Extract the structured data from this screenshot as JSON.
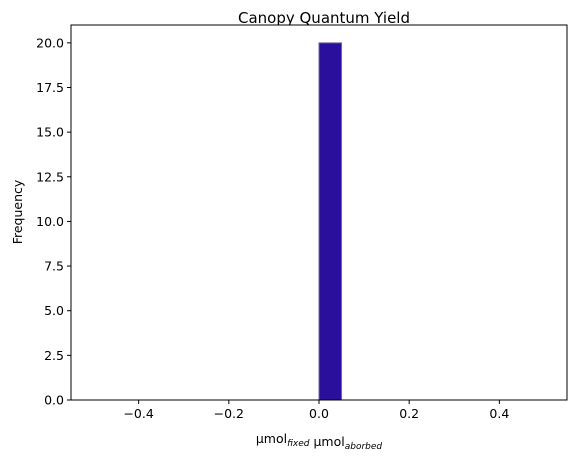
{
  "chart_data": {
    "type": "bar",
    "title": "Canopy Quantum Yield",
    "xlabel": {
      "parts": [
        {
          "text": "μmol",
          "sub": "fixed"
        },
        {
          "text": " μmol",
          "sub": "aborbed"
        }
      ]
    },
    "ylabel": "Frequency",
    "xlim": [
      -0.55,
      0.55
    ],
    "ylim": [
      0,
      21
    ],
    "x_ticks": [
      -0.4,
      -0.2,
      0.0,
      0.2,
      0.4
    ],
    "x_tick_labels": [
      "−0.4",
      "−0.2",
      "0.0",
      "0.2",
      "0.4"
    ],
    "y_ticks": [
      0,
      2.5,
      5,
      7.5,
      10,
      12.5,
      15,
      17.5,
      20
    ],
    "y_tick_labels": [
      "0.0",
      "2.5",
      "5.0",
      "7.5",
      "10.0",
      "12.5",
      "15.0",
      "17.5",
      "20.0"
    ],
    "bins": [
      {
        "x0": 0.0,
        "x1": 0.05,
        "count": 20
      }
    ],
    "bar_color": "#2a0f9c",
    "bar_edge_color": "#6f6aa8",
    "grid": false,
    "legend": "none"
  }
}
